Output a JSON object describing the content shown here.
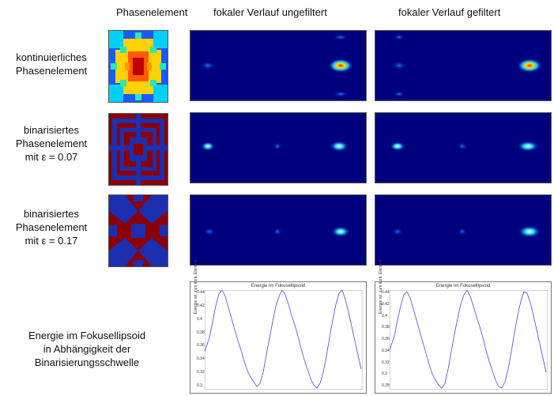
{
  "headers": {
    "col1": "Phasenelement",
    "col2": "fokaler Verlauf ungefiltert",
    "col3": "fokaler Verlauf gefiltert"
  },
  "rows": [
    {
      "lines": [
        "kontinuierliches",
        "Phasenelement"
      ]
    },
    {
      "lines": [
        "binarisiertes",
        "Phasenelement",
        "mit ε = 0.07"
      ]
    },
    {
      "lines": [
        "binarisiertes",
        "Phasenelement",
        "mit ε = 0.17"
      ]
    }
  ],
  "energy_label": [
    "Energie im Fokusellipsoid",
    "in Abhängigkeit der",
    "Binarisierungsschwelle"
  ],
  "energy_plots": [
    {
      "title": "Energie im Fokusellipsoid",
      "ylabel": "Energie rel. zum kont. Element",
      "yticks": [
        "0.44",
        "0.42",
        "0.4",
        "0.38",
        "0.36",
        "0.34",
        "0.32",
        "0.3"
      ]
    },
    {
      "title": "Energie im Fokusellipsoid",
      "ylabel": "Energie rel. zum kont. Element",
      "yticks": [
        "0.44",
        "0.42",
        "0.4",
        "0.38",
        "0.36",
        "0.34",
        "0.32",
        "0.3",
        "0.28"
      ]
    }
  ],
  "colors": {
    "jet_dark": "#00007f",
    "jet_red": "#8b0000",
    "line": "#3b3bd0"
  }
}
